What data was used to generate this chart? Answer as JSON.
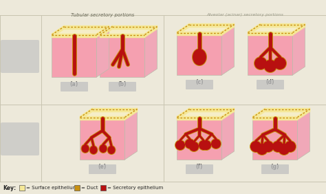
{
  "background_color": "#ede9da",
  "grid_line_color": "#c8c4b0",
  "box_face_color": "#f5a0b0",
  "box_face_color_light": "#fac8d0",
  "box_top_color": "#f5eec8",
  "box_right_color": "#f0a8b8",
  "duct_color": "#c89010",
  "duct_color_dark": "#a07008",
  "secretory_color": "#b81010",
  "secretory_color_light": "#d03030",
  "surface_epithelium_color": "#f5e898",
  "key_items": [
    {
      "label": "= Surface epithelium",
      "color": "#f5e898"
    },
    {
      "label": "= Duct",
      "color": "#c89010"
    },
    {
      "label": "= Secretory epithelium",
      "color": "#b81010"
    }
  ],
  "header_col1": "Tubular secretory portions",
  "header_col2": "Alveolar (acinar) secretory portions",
  "fig_width": 4.74,
  "fig_height": 2.82,
  "dpi": 100
}
